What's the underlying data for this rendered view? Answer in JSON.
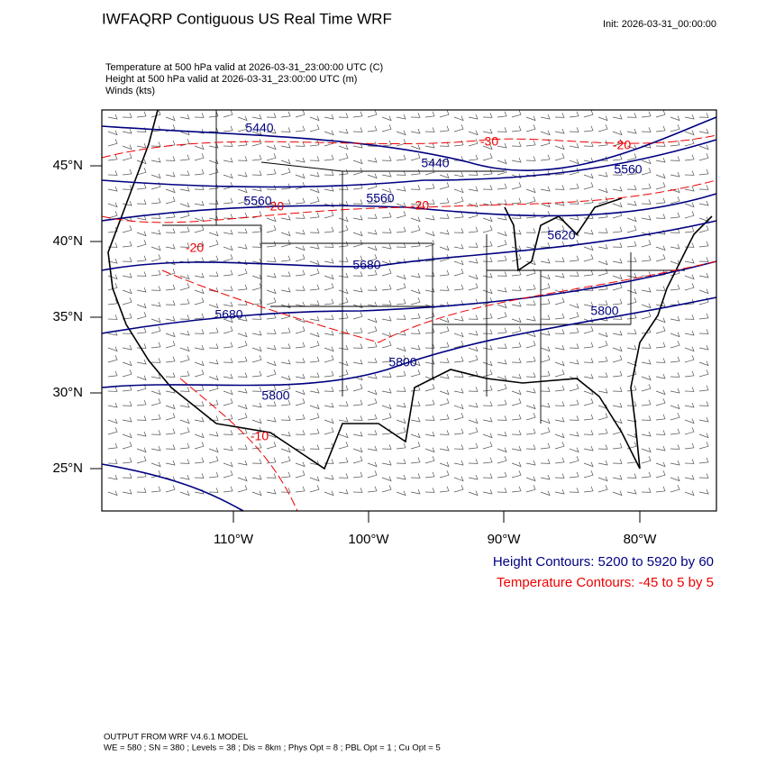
{
  "header": {
    "title": "IWFAQRP Contiguous US Real Time WRF",
    "init": "Init: 2026-03-31_00:00:00",
    "fields": [
      "Temperature at 500 hPa valid at 2026-03-31_23:00:00 UTC   (C)",
      "Height at 500 hPa valid at 2026-03-31_23:00:00 UTC   (m)",
      "Winds   (kts)"
    ]
  },
  "map": {
    "lat_labels": [
      "45°N",
      "40°N",
      "35°N",
      "30°N",
      "25°N"
    ],
    "lon_labels": [
      "110°W",
      "100°W",
      "90°W",
      "80°W"
    ],
    "height_labels": [
      5440,
      5440,
      5560,
      5560,
      5560,
      5620,
      5680,
      5680,
      5800,
      5800,
      5800
    ],
    "temperature_labels": [
      -30,
      -20,
      -20,
      -20,
      -20,
      -10
    ]
  },
  "legend": {
    "height": "Height Contours: 5200 to 5920 by 60",
    "temperature": "Temperature Contours: -45 to 5 by 5"
  },
  "footer": [
    "OUTPUT FROM WRF V4.6.1 MODEL",
    "WE = 580 ; SN = 380 ; Levels = 38 ; Dis = 8km ; Phys Opt = 8 ; PBL Opt = 1 ; Cu Opt = 5"
  ]
}
